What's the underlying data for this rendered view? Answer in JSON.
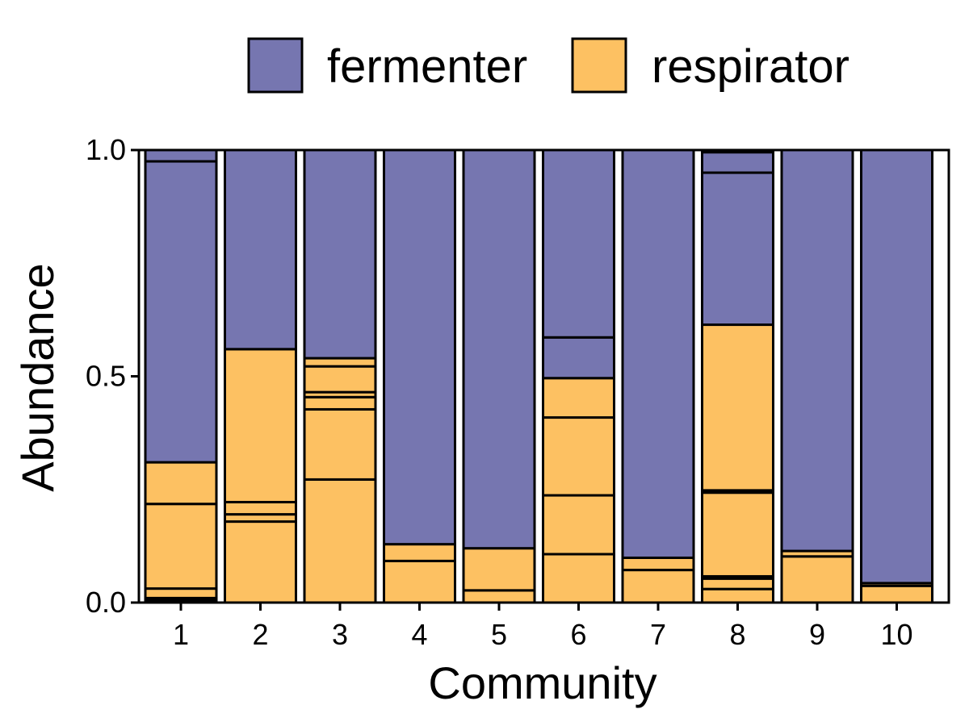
{
  "colors": {
    "fermenter": "#7676B0",
    "respirator": "#FDC162"
  },
  "legend": {
    "items": [
      {
        "label": "fermenter",
        "color_key": "fermenter"
      },
      {
        "label": "respirator",
        "color_key": "respirator"
      }
    ],
    "position": "top"
  },
  "chart_data": {
    "type": "bar",
    "stacked": true,
    "xlabel": "Community",
    "ylabel": "Abundance",
    "ylim": [
      0,
      1
    ],
    "yticks": [
      0.0,
      0.5,
      1.0
    ],
    "ytick_labels": [
      "0.0",
      "0.5",
      "1.0"
    ],
    "categories": [
      "1",
      "2",
      "3",
      "4",
      "5",
      "6",
      "7",
      "8",
      "9",
      "10"
    ],
    "bars": [
      {
        "community": "1",
        "segments": [
          {
            "type": "respirator",
            "value": 0.005
          },
          {
            "type": "respirator",
            "value": 0.005
          },
          {
            "type": "respirator",
            "value": 0.021
          },
          {
            "type": "respirator",
            "value": 0.187
          },
          {
            "type": "respirator",
            "value": 0.092
          },
          {
            "type": "fermenter",
            "value": 0.665
          },
          {
            "type": "fermenter",
            "value": 0.025
          }
        ]
      },
      {
        "community": "2",
        "segments": [
          {
            "type": "respirator",
            "value": 0.179
          },
          {
            "type": "respirator",
            "value": 0.016
          },
          {
            "type": "respirator",
            "value": 0.027
          },
          {
            "type": "respirator",
            "value": 0.338
          },
          {
            "type": "fermenter",
            "value": 0.44
          }
        ]
      },
      {
        "community": "3",
        "segments": [
          {
            "type": "respirator",
            "value": 0.272
          },
          {
            "type": "respirator",
            "value": 0.155
          },
          {
            "type": "respirator",
            "value": 0.027
          },
          {
            "type": "respirator",
            "value": 0.011
          },
          {
            "type": "respirator",
            "value": 0.057
          },
          {
            "type": "respirator",
            "value": 0.018
          },
          {
            "type": "fermenter",
            "value": 0.46
          }
        ]
      },
      {
        "community": "4",
        "segments": [
          {
            "type": "respirator",
            "value": 0.092
          },
          {
            "type": "respirator",
            "value": 0.037
          },
          {
            "type": "fermenter",
            "value": 0.871
          }
        ]
      },
      {
        "community": "5",
        "segments": [
          {
            "type": "respirator",
            "value": 0.027
          },
          {
            "type": "respirator",
            "value": 0.093
          },
          {
            "type": "fermenter",
            "value": 0.88
          }
        ]
      },
      {
        "community": "6",
        "segments": [
          {
            "type": "respirator",
            "value": 0.107
          },
          {
            "type": "respirator",
            "value": 0.13
          },
          {
            "type": "respirator",
            "value": 0.172
          },
          {
            "type": "respirator",
            "value": 0.087
          },
          {
            "type": "fermenter",
            "value": 0.09
          },
          {
            "type": "fermenter",
            "value": 0.414
          }
        ]
      },
      {
        "community": "7",
        "segments": [
          {
            "type": "respirator",
            "value": 0.072
          },
          {
            "type": "respirator",
            "value": 0.027
          },
          {
            "type": "fermenter",
            "value": 0.901
          }
        ]
      },
      {
        "community": "8",
        "segments": [
          {
            "type": "respirator",
            "value": 0.03
          },
          {
            "type": "respirator",
            "value": 0.023
          },
          {
            "type": "respirator",
            "value": 0.005
          },
          {
            "type": "respirator",
            "value": 0.185
          },
          {
            "type": "respirator",
            "value": 0.005
          },
          {
            "type": "respirator",
            "value": 0.366
          },
          {
            "type": "fermenter",
            "value": 0.336
          },
          {
            "type": "fermenter",
            "value": 0.045
          }
        ]
      },
      {
        "community": "9",
        "segments": [
          {
            "type": "respirator",
            "value": 0.102
          },
          {
            "type": "respirator",
            "value": 0.012
          },
          {
            "type": "fermenter",
            "value": 0.886
          }
        ]
      },
      {
        "community": "10",
        "segments": [
          {
            "type": "respirator",
            "value": 0.037
          },
          {
            "type": "respirator",
            "value": 0.006
          },
          {
            "type": "fermenter",
            "value": 0.957
          }
        ]
      }
    ]
  }
}
